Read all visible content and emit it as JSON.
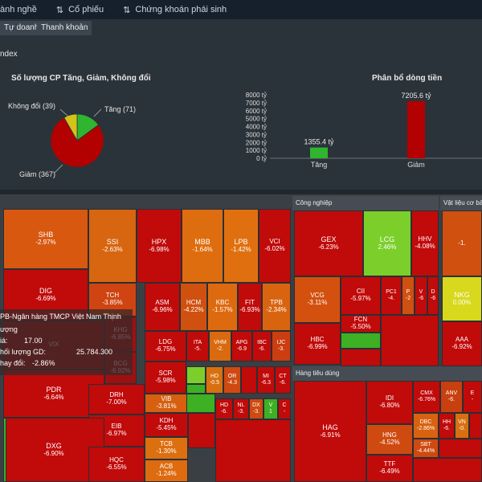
{
  "nav": {
    "items": [
      {
        "label": "ành nghề",
        "icon": "grid-icon"
      },
      {
        "label": "Cổ phiếu",
        "icon": "sort-icon"
      },
      {
        "label": "Chứng khoán phái sinh",
        "icon": "sort-icon"
      }
    ]
  },
  "subtabs": [
    "Tự doanh",
    "Thanh khoản"
  ],
  "section_label": "ndex",
  "pie": {
    "title": "Số lượng CP Tăng, Giảm, Không đổi",
    "labels": {
      "unchanged": "Không đổi (39)",
      "up": "Tăng (71)",
      "down": "Giảm (367)"
    },
    "colors": {
      "down": "#b30000",
      "up": "#2fb52f",
      "unchanged": "#d4c21a"
    }
  },
  "cashflow": {
    "title": "Phân bổ dòng tiền"
  },
  "chart_data": [
    {
      "type": "pie",
      "title": "Số lượng CP Tăng, Giảm, Không đổi",
      "slices": [
        {
          "label": "Tăng",
          "value": 71,
          "color": "#2fb52f"
        },
        {
          "label": "Giảm",
          "value": 367,
          "color": "#b30000"
        },
        {
          "label": "Không đổi",
          "value": 39,
          "color": "#d4c21a"
        }
      ]
    },
    {
      "type": "bar",
      "title": "Phân bổ dòng tiền",
      "categories": [
        "Tăng",
        "Giảm"
      ],
      "values": [
        1355.4,
        7205.6
      ],
      "value_labels": [
        "1355.4 tỷ",
        "7205.6 tỷ"
      ],
      "colors": [
        "#2fb52f",
        "#b30000"
      ],
      "ylim": [
        0,
        8000
      ],
      "yticks": [
        "0 tỷ",
        "1000 tỷ",
        "2000 tỷ",
        "3000 tỷ",
        "4000 tỷ",
        "5000 tỷ",
        "6000 tỷ",
        "7000 tỷ",
        "8000 tỷ"
      ]
    }
  ],
  "sectors": {
    "industrial": "Công nghiệp",
    "materials": "Vật liệu cơ bả",
    "consumer": "Hàng tiêu dùng"
  },
  "tiles": {
    "SHB": {
      "t": "SHB",
      "p": "-2.97%"
    },
    "SSI": {
      "t": "SSI",
      "p": "-2.63%"
    },
    "HPX": {
      "t": "HPX",
      "p": "-6.98%"
    },
    "MBB": {
      "t": "MBB",
      "p": "-1.64%"
    },
    "LPB": {
      "t": "LPB",
      "p": "-1.42%"
    },
    "VCI": {
      "t": "VCI",
      "p": "-6.02%"
    },
    "DIG": {
      "t": "DIG",
      "p": "-6.69%"
    },
    "TCH": {
      "t": "TCH",
      "p": "-3.85%"
    },
    "KHG": {
      "t": "KHG",
      "p": "-6.85%"
    },
    "BCG": {
      "t": "BCG",
      "p": "-6.92%"
    },
    "VIX": {
      "t": "VIX",
      "p": ""
    },
    "ASM": {
      "t": "ASM",
      "p": "-6.96%"
    },
    "HCM": {
      "t": "HCM",
      "p": "-4.22%"
    },
    "KBC": {
      "t": "KBC",
      "p": "-1.57%"
    },
    "FIT": {
      "t": "FIT",
      "p": "-6.93%"
    },
    "TPB": {
      "t": "TPB",
      "p": "-2.34%"
    },
    "LDG": {
      "t": "LDG",
      "p": "-6.75%"
    },
    "ITA": {
      "t": "ITA",
      "p": "-5."
    },
    "VHM": {
      "t": "VHM",
      "p": "-2."
    },
    "APG": {
      "t": "APG",
      "p": "-6.9"
    },
    "IBC": {
      "t": "IBC",
      "p": "-6."
    },
    "IJC": {
      "t": "IJC",
      "p": "-3."
    },
    "SCR": {
      "t": "SCR",
      "p": "-5.98%"
    },
    "HD": {
      "t": "HD",
      "p": "-0.5"
    },
    "OR": {
      "t": "OR",
      "p": "-4.3"
    },
    "MI": {
      "t": "MI",
      "p": "-6.3"
    },
    "CT": {
      "t": "CT",
      "p": "-6."
    },
    "PDR": {
      "t": "PDR",
      "p": "-6.64%"
    },
    "DRH": {
      "t": "DRH",
      "p": "-7.00%"
    },
    "VIB": {
      "t": "VIB",
      "p": "-3.81%"
    },
    "HD2": {
      "t": "HD",
      "p": "-6."
    },
    "NL": {
      "t": "NL",
      "p": "-3."
    },
    "DX": {
      "t": "DX",
      "p": "-3."
    },
    "V": {
      "t": "V",
      "p": "1"
    },
    "C": {
      "t": "C",
      "p": "-"
    },
    "EIB": {
      "t": "EIB",
      "p": "-6.97%"
    },
    "KDH": {
      "t": "KDH",
      "p": "-5.45%"
    },
    "DXG": {
      "t": "DXG",
      "p": "-6.90%"
    },
    "HQC": {
      "t": "HQC",
      "p": "-6.55%"
    },
    "TCB": {
      "t": "TCB",
      "p": "-1.30%"
    },
    "ACB": {
      "t": "ACB",
      "p": "-1.24%"
    },
    "GEX": {
      "t": "GEX",
      "p": "-6.23%"
    },
    "LCG": {
      "t": "LCG",
      "p": "2.46%"
    },
    "HHV": {
      "t": "HHV",
      "p": "-4.08%"
    },
    "VCG": {
      "t": "VCG",
      "p": "-3.11%"
    },
    "CII": {
      "t": "CII",
      "p": "-5.97%"
    },
    "PC1": {
      "t": "PC1",
      "p": "-4."
    },
    "P": {
      "t": "P",
      "p": "-2"
    },
    "V2": {
      "t": "V",
      "p": "-6"
    },
    "D": {
      "t": "D",
      "p": "-6"
    },
    "FCN": {
      "t": "FCN",
      "p": "-5.50%"
    },
    "HBC": {
      "t": "HBC",
      "p": "-6.99%"
    },
    "HSG": {
      "t": "",
      "p": "-1."
    },
    "NKG": {
      "t": "NKG",
      "p": "0.00%"
    },
    "AAA": {
      "t": "AAA",
      "p": "-6.92%"
    },
    "HAG": {
      "t": "HAG",
      "p": "-6.91%"
    },
    "IDI": {
      "t": "IDI",
      "p": "-6.80%"
    },
    "CMX": {
      "t": "CMX",
      "p": "-6.76%"
    },
    "ANV": {
      "t": "ANV",
      "p": "-6."
    },
    "E": {
      "t": "E",
      "p": "-"
    },
    "HNG": {
      "t": "HNG",
      "p": "-4.52%"
    },
    "DBC": {
      "t": "DBC",
      "p": "-2.86%"
    },
    "HH": {
      "t": "HH",
      "p": "-6."
    },
    "VN": {
      "t": "VN",
      "p": "-0."
    },
    "SBT": {
      "t": "SBT",
      "p": "-4.44%"
    },
    "TTF": {
      "t": "TTF",
      "p": "-6.49%"
    }
  },
  "tooltip": {
    "title": "PB-Ngân hàng TMCP Việt Nam Thịnh",
    "l1": "ượng",
    "l2": "iá:",
    "v2": "17.00",
    "l3": "hối lượng GD:",
    "v3": "25.784.300",
    "l4": "hay đổi:",
    "v4": "-2.86%"
  }
}
